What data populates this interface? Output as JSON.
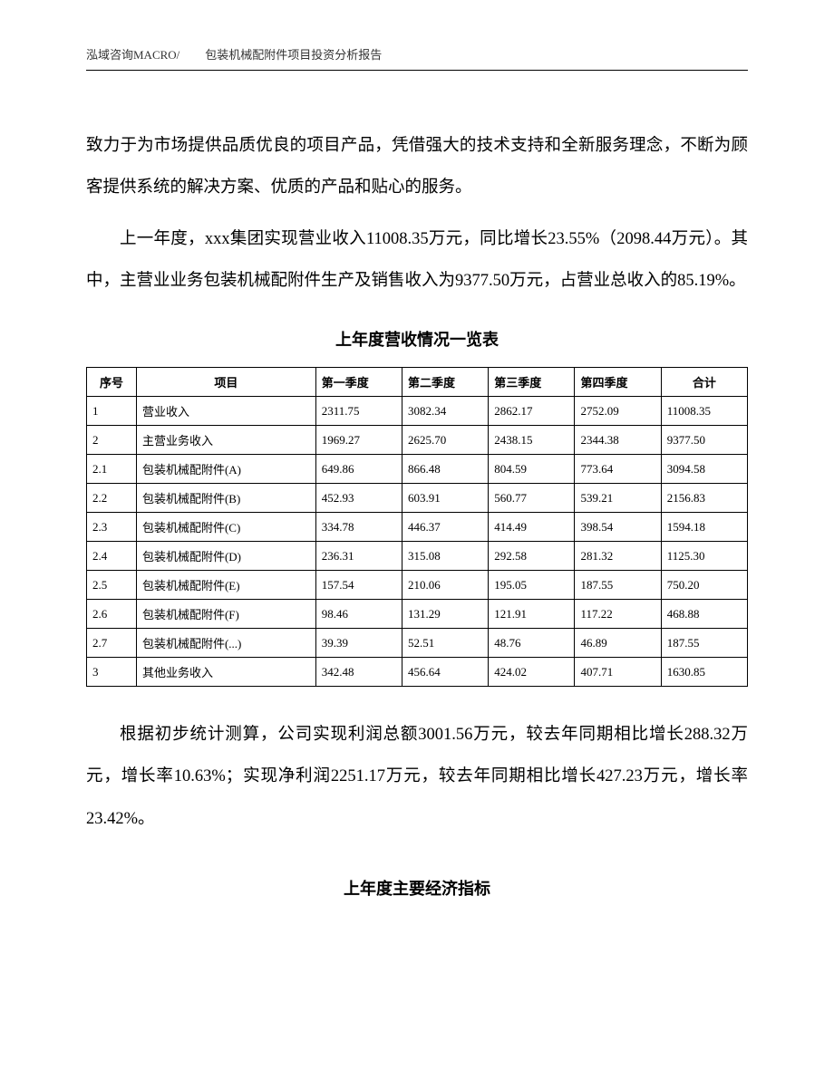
{
  "header": {
    "company": "泓域咨询MACRO/",
    "doc_title": "包装机械配附件项目投资分析报告"
  },
  "paragraphs": {
    "p1": "致力于为市场提供品质优良的项目产品，凭借强大的技术支持和全新服务理念，不断为顾客提供系统的解决方案、优质的产品和贴心的服务。",
    "p2": "上一年度，xxx集团实现营业收入11008.35万元，同比增长23.55%（2098.44万元）。其中，主营业业务包装机械配附件生产及销售收入为9377.50万元，占营业总收入的85.19%。",
    "p3": "根据初步统计测算，公司实现利润总额3001.56万元，较去年同期相比增长288.32万元，增长率10.63%；实现净利润2251.17万元，较去年同期相比增长427.23万元，增长率23.42%。"
  },
  "table1": {
    "title": "上年度营收情况一览表",
    "columns": [
      "序号",
      "项目",
      "第一季度",
      "第二季度",
      "第三季度",
      "第四季度",
      "合计"
    ],
    "rows": [
      [
        "1",
        "营业收入",
        "2311.75",
        "3082.34",
        "2862.17",
        "2752.09",
        "11008.35"
      ],
      [
        "2",
        "主营业务收入",
        "1969.27",
        "2625.70",
        "2438.15",
        "2344.38",
        "9377.50"
      ],
      [
        "2.1",
        "包装机械配附件(A)",
        "649.86",
        "866.48",
        "804.59",
        "773.64",
        "3094.58"
      ],
      [
        "2.2",
        "包装机械配附件(B)",
        "452.93",
        "603.91",
        "560.77",
        "539.21",
        "2156.83"
      ],
      [
        "2.3",
        "包装机械配附件(C)",
        "334.78",
        "446.37",
        "414.49",
        "398.54",
        "1594.18"
      ],
      [
        "2.4",
        "包装机械配附件(D)",
        "236.31",
        "315.08",
        "292.58",
        "281.32",
        "1125.30"
      ],
      [
        "2.5",
        "包装机械配附件(E)",
        "157.54",
        "210.06",
        "195.05",
        "187.55",
        "750.20"
      ],
      [
        "2.6",
        "包装机械配附件(F)",
        "98.46",
        "131.29",
        "121.91",
        "117.22",
        "468.88"
      ],
      [
        "2.7",
        "包装机械配附件(...)",
        "39.39",
        "52.51",
        "48.76",
        "46.89",
        "187.55"
      ],
      [
        "3",
        "其他业务收入",
        "342.48",
        "456.64",
        "424.02",
        "407.71",
        "1630.85"
      ]
    ]
  },
  "section2_title": "上年度主要经济指标"
}
